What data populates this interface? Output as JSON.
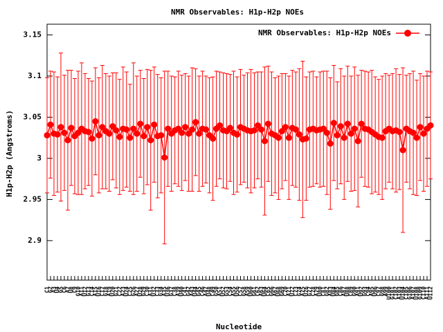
{
  "chart_data": {
    "type": "errorline",
    "title": "NMR Observables: H1p-H2p NOEs",
    "xlabel": "Nucleotide",
    "ylabel": "H1p-H2p (Angstroms)",
    "categories": [
      "C1",
      "G2",
      "A3",
      "U4",
      "G5",
      "C6",
      "A7",
      "U8",
      "C9",
      "G10",
      "A11",
      "U12",
      "G13",
      "C14",
      "A15",
      "U16",
      "C17",
      "G18",
      "A19",
      "U20",
      "G21",
      "C22",
      "A23",
      "U24",
      "C25",
      "G26",
      "A27",
      "U28",
      "G29",
      "C30",
      "A31",
      "U32",
      "C33",
      "G34",
      "A35",
      "U36",
      "G37",
      "C38",
      "A39",
      "U40",
      "C41",
      "G42",
      "A43",
      "U44",
      "G45",
      "C46",
      "A47",
      "U48",
      "C49",
      "G50",
      "A51",
      "U52",
      "G53",
      "C54",
      "A55",
      "U56",
      "C57",
      "G58",
      "A59",
      "U60",
      "G61",
      "C62",
      "A63",
      "U64",
      "C65",
      "G66",
      "A67",
      "U68",
      "G69",
      "C70",
      "A71",
      "U72",
      "C73",
      "G74",
      "A75",
      "U76",
      "G77",
      "C78",
      "A79",
      "U80",
      "C81",
      "G82",
      "A83",
      "U84",
      "G85",
      "C86",
      "A87",
      "U88",
      "C89",
      "G90",
      "A91",
      "U92",
      "G93",
      "C94",
      "A95",
      "U96",
      "C97",
      "G98",
      "A99",
      "U100",
      "G101",
      "C102",
      "A103",
      "U104",
      "C105",
      "G106",
      "A107",
      "U108",
      "G109",
      "C110",
      "A111",
      "U112"
    ],
    "series": [
      {
        "name": "NMR Observables: H1p-H2p NOEs",
        "color": "#ff0000",
        "values": [
          3.028,
          3.041,
          3.03,
          3.029,
          3.038,
          3.031,
          3.022,
          3.037,
          3.027,
          3.031,
          3.036,
          3.033,
          3.032,
          3.024,
          3.045,
          3.028,
          3.038,
          3.033,
          3.03,
          3.039,
          3.034,
          3.026,
          3.036,
          3.035,
          3.025,
          3.036,
          3.03,
          3.042,
          3.027,
          3.038,
          3.022,
          3.041,
          3.027,
          3.028,
          3.001,
          3.036,
          3.03,
          3.034,
          3.036,
          3.031,
          3.038,
          3.03,
          3.035,
          3.044,
          3.03,
          3.036,
          3.035,
          3.028,
          3.024,
          3.036,
          3.04,
          3.034,
          3.033,
          3.037,
          3.031,
          3.029,
          3.038,
          3.036,
          3.034,
          3.033,
          3.034,
          3.04,
          3.035,
          3.021,
          3.042,
          3.03,
          3.028,
          3.025,
          3.033,
          3.038,
          3.025,
          3.037,
          3.035,
          3.029,
          3.023,
          3.024,
          3.035,
          3.036,
          3.034,
          3.035,
          3.036,
          3.031,
          3.018,
          3.043,
          3.028,
          3.039,
          3.025,
          3.042,
          3.03,
          3.036,
          3.021,
          3.042,
          3.036,
          3.035,
          3.032,
          3.029,
          3.026,
          3.025,
          3.033,
          3.036,
          3.033,
          3.034,
          3.032,
          3.01,
          3.036,
          3.033,
          3.031,
          3.025,
          3.038,
          3.03,
          3.036,
          3.04
        ],
        "errors": [
          0.07,
          0.065,
          0.075,
          0.07,
          0.09,
          0.07,
          0.085,
          0.07,
          0.07,
          0.075,
          0.08,
          0.07,
          0.065,
          0.07,
          0.065,
          0.07,
          0.075,
          0.07,
          0.07,
          0.065,
          0.07,
          0.07,
          0.075,
          0.07,
          0.065,
          0.08,
          0.07,
          0.065,
          0.07,
          0.07,
          0.085,
          0.07,
          0.075,
          0.07,
          0.105,
          0.07,
          0.07,
          0.065,
          0.07,
          0.07,
          0.065,
          0.07,
          0.075,
          0.065,
          0.07,
          0.07,
          0.065,
          0.07,
          0.075,
          0.07,
          0.065,
          0.07,
          0.07,
          0.065,
          0.075,
          0.07,
          0.07,
          0.065,
          0.07,
          0.075,
          0.07,
          0.065,
          0.07,
          0.09,
          0.07,
          0.075,
          0.07,
          0.075,
          0.07,
          0.065,
          0.075,
          0.07,
          0.07,
          0.08,
          0.095,
          0.075,
          0.07,
          0.07,
          0.065,
          0.07,
          0.07,
          0.075,
          0.08,
          0.07,
          0.065,
          0.07,
          0.075,
          0.07,
          0.07,
          0.075,
          0.08,
          0.065,
          0.07,
          0.07,
          0.075,
          0.07,
          0.07,
          0.075,
          0.07,
          0.065,
          0.07,
          0.075,
          0.07,
          0.1,
          0.065,
          0.07,
          0.075,
          0.07,
          0.065,
          0.07,
          0.07,
          0.065
        ]
      }
    ],
    "ylim": [
      2.852,
      3.163
    ],
    "yticks": [
      2.9,
      2.95,
      3,
      3.05,
      3.1,
      3.15
    ],
    "legend": "top right"
  }
}
